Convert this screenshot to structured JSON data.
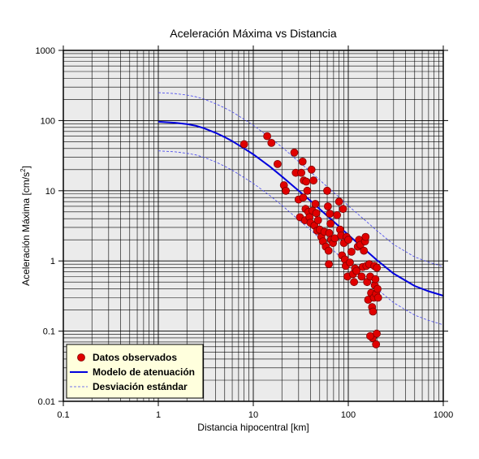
{
  "chart_data": {
    "type": "scatter",
    "title": "Aceleración Máxima vs Distancia",
    "xlabel": "Distancia hipocentral [km]",
    "ylabel_main": "Aceleración Máxima [cm/s",
    "ylabel_sup": "2",
    "ylabel_end": "]",
    "xscale": "log",
    "yscale": "log",
    "xlim": [
      0.1,
      1000
    ],
    "ylim": [
      0.01,
      1000
    ],
    "x_ticks": [
      {
        "v": 0.1,
        "label": "0.1"
      },
      {
        "v": 1,
        "label": "1"
      },
      {
        "v": 10,
        "label": "10"
      },
      {
        "v": 100,
        "label": "100"
      },
      {
        "v": 1000,
        "label": "1000"
      }
    ],
    "y_ticks": [
      {
        "v": 0.01,
        "label": "0.01"
      },
      {
        "v": 0.1,
        "label": "0.1"
      },
      {
        "v": 1,
        "label": "1"
      },
      {
        "v": 10,
        "label": "10"
      },
      {
        "v": 100,
        "label": "100"
      },
      {
        "v": 1000,
        "label": "1000"
      }
    ],
    "grid": true,
    "legend_position": "bottom-left",
    "colors": {
      "plot_bg": "#ebebeb",
      "grid": "#000000",
      "points_fill": "#e00000",
      "points_stroke": "#800000",
      "model": "#0000dd",
      "deviation": "#4444ee",
      "legend_bg": "#ffffdd"
    },
    "legend": [
      {
        "label": "Datos observados",
        "kind": "point"
      },
      {
        "label": "Modelo de atenuación",
        "kind": "solid-line"
      },
      {
        "label": "Desviación estándar",
        "kind": "dashed-line"
      }
    ],
    "series": [
      {
        "name": "Modelo de atenuación",
        "kind": "solid-line",
        "x": [
          1,
          1.5,
          2,
          2.5,
          3,
          4,
          5,
          6,
          8,
          10,
          15,
          20,
          30,
          40,
          60,
          80,
          100,
          150,
          200,
          300,
          500,
          700,
          1000
        ],
        "y": [
          96,
          93,
          89,
          84,
          78,
          67,
          58,
          51,
          40,
          33,
          22,
          16,
          10,
          7.2,
          4.4,
          3.1,
          2.35,
          1.45,
          1.03,
          0.66,
          0.44,
          0.37,
          0.32
        ]
      },
      {
        "name": "Desviación estándar",
        "kind": "dashed-line",
        "x": [
          1,
          1.5,
          2,
          2.5,
          3,
          4,
          5,
          6,
          8,
          10,
          15,
          20,
          30,
          40,
          60,
          80,
          100,
          150,
          200,
          300,
          500,
          700,
          1000
        ],
        "y": [
          250,
          242,
          231,
          218,
          203,
          174,
          151,
          133,
          104,
          86,
          57,
          42,
          26,
          18.7,
          11.4,
          8.1,
          6.1,
          3.8,
          2.7,
          1.72,
          1.14,
          0.96,
          0.83
        ]
      },
      {
        "name": "Desviación estándar",
        "kind": "dashed-line",
        "x": [
          1,
          1.5,
          2,
          2.5,
          3,
          4,
          5,
          6,
          8,
          10,
          15,
          20,
          30,
          40,
          60,
          80,
          100,
          150,
          200,
          300,
          500,
          700,
          1000
        ],
        "y": [
          37,
          35.8,
          34.2,
          32.3,
          30,
          25.8,
          22.3,
          19.6,
          15.4,
          12.7,
          8.5,
          6.2,
          3.85,
          2.77,
          1.69,
          1.19,
          0.9,
          0.56,
          0.4,
          0.254,
          0.169,
          0.142,
          0.123
        ]
      },
      {
        "name": "Datos observados",
        "kind": "points",
        "points": [
          [
            8,
            46
          ],
          [
            14,
            60
          ],
          [
            15.5,
            48
          ],
          [
            18,
            24
          ],
          [
            21,
            12
          ],
          [
            22,
            10
          ],
          [
            27,
            35
          ],
          [
            28,
            18
          ],
          [
            30,
            7.5
          ],
          [
            31,
            4.2
          ],
          [
            32,
            18
          ],
          [
            33,
            26
          ],
          [
            33.5,
            8
          ],
          [
            34,
            14
          ],
          [
            35,
            3.8
          ],
          [
            35.5,
            5.5
          ],
          [
            36,
            13.5
          ],
          [
            37,
            10
          ],
          [
            38,
            5
          ],
          [
            39,
            4.2
          ],
          [
            40,
            3.5
          ],
          [
            41,
            20
          ],
          [
            42,
            5.2
          ],
          [
            43,
            14
          ],
          [
            44,
            3.2
          ],
          [
            45,
            6.5
          ],
          [
            46,
            4.8
          ],
          [
            47,
            2.7
          ],
          [
            48,
            3.8
          ],
          [
            50,
            2.8
          ],
          [
            52,
            2.2
          ],
          [
            54,
            1.9
          ],
          [
            56,
            2.6
          ],
          [
            58,
            1.6
          ],
          [
            60,
            10
          ],
          [
            61,
            6
          ],
          [
            62,
            1.4
          ],
          [
            62.5,
            0.9
          ],
          [
            63,
            2.5
          ],
          [
            64,
            4.7
          ],
          [
            65,
            3.4
          ],
          [
            66,
            2
          ],
          [
            69,
            1.8
          ],
          [
            72,
            2.1
          ],
          [
            76,
            4.5
          ],
          [
            80,
            7
          ],
          [
            82,
            2.8
          ],
          [
            84,
            2.3
          ],
          [
            86,
            1.2
          ],
          [
            88,
            5.5
          ],
          [
            90,
            1.8
          ],
          [
            92,
            1.05
          ],
          [
            94,
            0.85
          ],
          [
            96,
            2.2
          ],
          [
            98,
            0.6
          ],
          [
            100,
            2
          ],
          [
            104,
            0.95
          ],
          [
            108,
            1.35
          ],
          [
            112,
            0.65
          ],
          [
            115,
            0.5
          ],
          [
            118,
            0.78
          ],
          [
            122,
            0.72
          ],
          [
            126,
            1.6
          ],
          [
            130,
            2
          ],
          [
            134,
            1.7
          ],
          [
            138,
            0.6
          ],
          [
            142,
            0.82
          ],
          [
            146,
            1.4
          ],
          [
            150,
            1.9
          ],
          [
            152,
            2.2
          ],
          [
            155,
            0.85
          ],
          [
            158,
            0.5
          ],
          [
            162,
            0.28
          ],
          [
            166,
            0.9
          ],
          [
            170,
            0.6
          ],
          [
            174,
            0.35
          ],
          [
            178,
            0.22
          ],
          [
            182,
            0.19
          ],
          [
            186,
            0.3
          ],
          [
            188,
            0.85
          ],
          [
            190,
            0.45
          ],
          [
            193,
            0.55
          ],
          [
            196,
            0.34
          ],
          [
            200,
            0.8
          ],
          [
            203,
            0.4
          ],
          [
            206,
            0.3
          ],
          [
            180,
            0.08
          ],
          [
            199,
            0.092
          ],
          [
            196,
            0.065
          ],
          [
            170,
            0.085
          ]
        ]
      }
    ]
  }
}
